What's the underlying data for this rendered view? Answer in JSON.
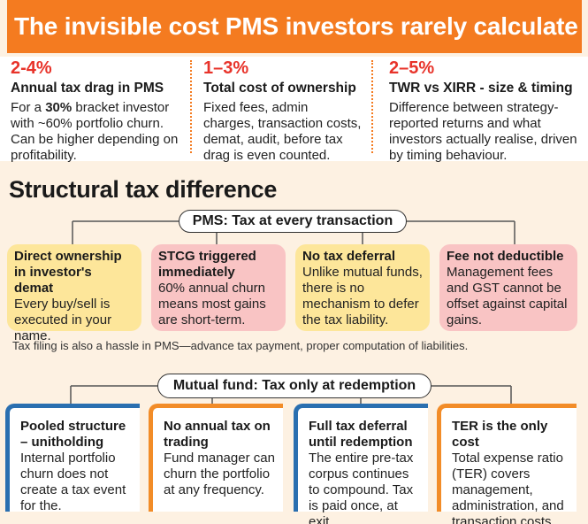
{
  "title": "The invisible cost PMS investors rarely calculate",
  "stats": [
    {
      "value": "2-4%",
      "label": "Annual tax drag in PMS",
      "desc_pre": "For a ",
      "desc_bold": "30%",
      "desc_post": " bracket investor with ~60% portfolio churn. Can be higher depending on profitability."
    },
    {
      "value": "1–3%",
      "label": "Total cost of ownership",
      "desc": "Fixed fees, admin charges, transaction costs, demat, audit, before tax drag is even counted."
    },
    {
      "value": "2–5%",
      "label": "TWR vs XIRR - size & timing",
      "desc": "Difference between strategy-reported returns and what investors actually realise, driven by timing behaviour."
    }
  ],
  "section_title": "Structural tax difference",
  "pms": {
    "pill": "PMS: Tax at every transaction",
    "cards": [
      {
        "head": "Direct ownership in investor's demat",
        "body": "Every buy/sell is executed in your name."
      },
      {
        "head": "STCG triggered immediately",
        "body": "60% annual churn means most gains are short-term."
      },
      {
        "head": "No tax deferral",
        "body": "Unlike mutual funds, there is no mechanism to defer the tax liability."
      },
      {
        "head": "Fee not deductible",
        "body": "Management fees and GST cannot be offset against capital gains."
      }
    ],
    "note": "Tax filing is also a hassle in PMS—advance tax payment, proper computation of liabilities."
  },
  "mf": {
    "pill": "Mutual fund: Tax only at redemption",
    "cards": [
      {
        "head": "Pooled structure – unitholding",
        "body": "Internal portfolio churn does not create a tax event for the."
      },
      {
        "head": "No annual tax on trading",
        "body": "Fund manager can churn the portfolio at any frequency."
      },
      {
        "head": "Full tax deferral until redemption",
        "body": "The entire pre-tax corpus continues to compound. Tax is paid once, at exit."
      },
      {
        "head": "TER is the only cost",
        "body": "Total expense ratio (TER) covers management, administration, and transaction costs."
      }
    ]
  },
  "colors": {
    "orange": "#f47b20",
    "red_value": "#e8332a",
    "yellow_card": "#fde69a",
    "pink_card": "#f9c4c4",
    "blue_edge": "#2a6fb0",
    "orange_edge": "#f28c28",
    "background": "#fdf1e2"
  }
}
